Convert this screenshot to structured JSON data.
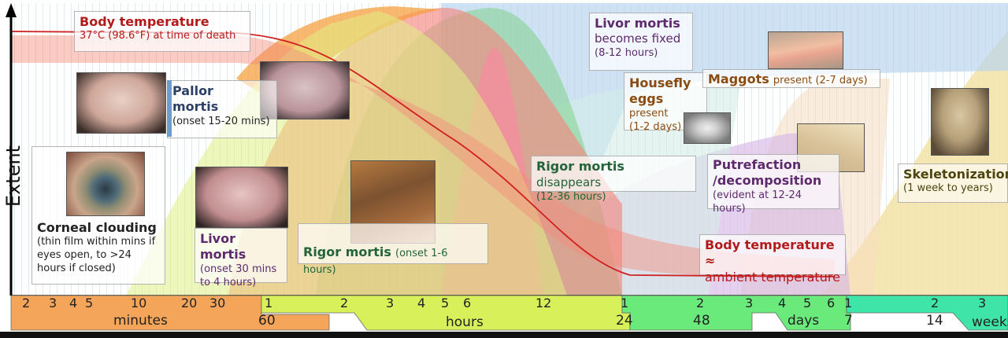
{
  "axis": {
    "ylabel": "Extent"
  },
  "labels": {
    "body_temp_title": "Body temperature",
    "body_temp_sub": "37°C (98.6°F) at time of death",
    "pallor_title": "Pallor mortis",
    "pallor_sub": "(onset 15-20 mins)",
    "corneal_title": "Corneal clouding",
    "corneal_sub": "(thin film within mins if eyes open, to >24 hours if closed)",
    "livor_title": "Livor mortis",
    "livor_sub": "(onset 30 mins to 4 hours)",
    "rigor_title": "Rigor mortis",
    "rigor_sub": "(onset 1-6 hours)",
    "rigor_dis_title": "Rigor mortis",
    "rigor_dis_word": "disappears",
    "rigor_dis_sub": "(12-36 hours)",
    "livor_fixed_title": "Livor mortis",
    "livor_fixed_line2": "becomes fixed",
    "livor_fixed_sub": "(8-12 hours)",
    "housefly_title": "Housefly eggs",
    "housefly_word": "present",
    "housefly_sub": "(1-2 days)",
    "maggots_title": "Maggots",
    "maggots_sub": "present (2-7 days)",
    "putref_title": "Putrefaction /decomposition",
    "putref_sub": "(evident at 12-24 hours)",
    "bt_ambient_title": "Body temperature ≈",
    "bt_ambient_sub": "ambient temperature",
    "skel_title": "Skeletonization",
    "skel_sub": "(1 week to years)"
  },
  "timeline": {
    "minutes_ticks": [
      "2",
      "3",
      "4",
      "5",
      "10",
      "20",
      "30"
    ],
    "minutes_label": "minutes",
    "minutes_end": "60",
    "hours_ticks": [
      "1",
      "2",
      "3",
      "4",
      "5",
      "6",
      "12"
    ],
    "hours_label": "hours",
    "hours_end": "24",
    "hours_end2": "48",
    "days_ticks": [
      "1",
      "2",
      "3",
      "4",
      "5",
      "6"
    ],
    "days_label": "days",
    "days_end": "7",
    "days_end2": "14",
    "weeks_ticks": [
      "1",
      "2",
      "3"
    ],
    "weeks_label": "weeks"
  },
  "colors": {
    "minutes": "#f5a55a",
    "hours": "#d8f15a",
    "days": "#69ea7a",
    "weeks": "#3fe5a8",
    "temp_curve": "#d02020"
  }
}
